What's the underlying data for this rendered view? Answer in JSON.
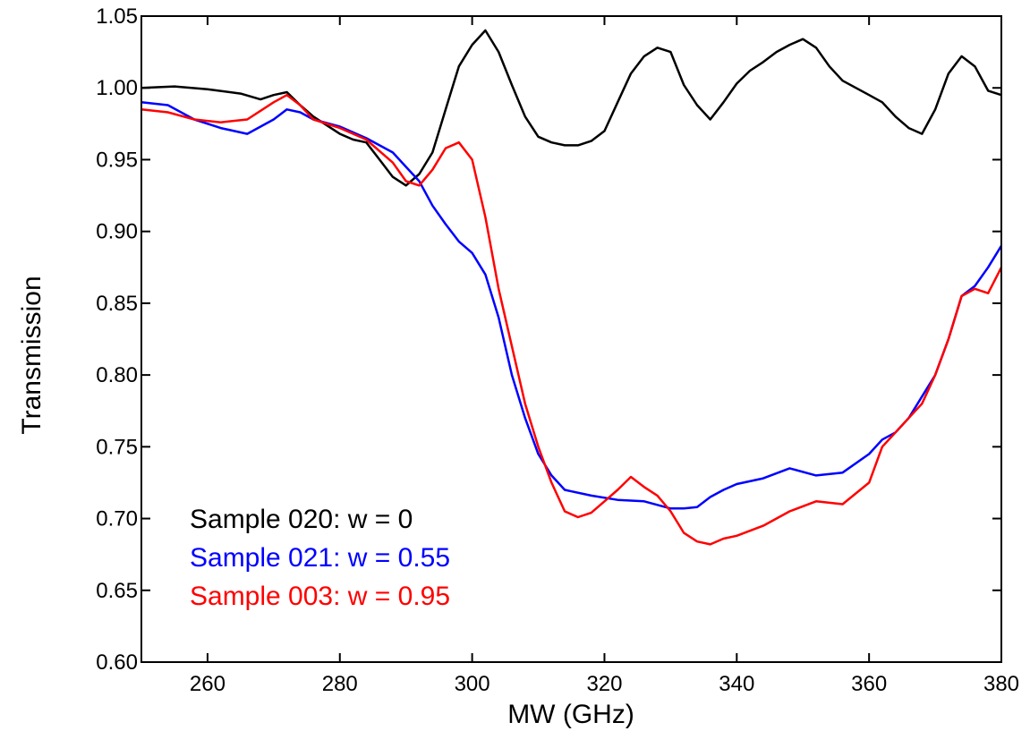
{
  "chart_data": {
    "type": "line",
    "xlabel": "MW (GHz)",
    "ylabel": "Transmission",
    "xlim": [
      250,
      380
    ],
    "ylim": [
      0.6,
      1.05
    ],
    "xticks": [
      260,
      280,
      300,
      320,
      340,
      360,
      380
    ],
    "xtick_labels": [
      "260",
      "280",
      "300",
      "320",
      "340",
      "360",
      "380"
    ],
    "yticks": [
      0.6,
      0.65,
      0.7,
      0.75,
      0.8,
      0.85,
      0.9,
      0.95,
      1.0,
      1.05
    ],
    "ytick_labels": [
      "0.60",
      "0.65",
      "0.70",
      "0.75",
      "0.80",
      "0.85",
      "0.90",
      "0.95",
      "1.00",
      "1.05"
    ],
    "grid": false,
    "legend_position": "bottom-left",
    "series": [
      {
        "name": "Sample 020: w = 0",
        "color": "#000000",
        "x": [
          250,
          255,
          260,
          265,
          268,
          270,
          272,
          274,
          276,
          278,
          280,
          282,
          284,
          286,
          288,
          290,
          292,
          294,
          296,
          298,
          300,
          302,
          304,
          306,
          308,
          310,
          312,
          314,
          316,
          318,
          320,
          322,
          324,
          326,
          328,
          330,
          332,
          334,
          336,
          338,
          340,
          342,
          344,
          346,
          348,
          350,
          352,
          354,
          356,
          358,
          360,
          362,
          364,
          366,
          368,
          370,
          372,
          374,
          376,
          378,
          380
        ],
        "y": [
          1.0,
          1.001,
          0.999,
          0.996,
          0.992,
          0.995,
          0.997,
          0.988,
          0.98,
          0.974,
          0.968,
          0.964,
          0.962,
          0.95,
          0.938,
          0.932,
          0.94,
          0.955,
          0.985,
          1.015,
          1.03,
          1.04,
          1.025,
          1.002,
          0.98,
          0.966,
          0.962,
          0.96,
          0.96,
          0.963,
          0.97,
          0.99,
          1.01,
          1.022,
          1.028,
          1.025,
          1.002,
          0.988,
          0.978,
          0.99,
          1.003,
          1.012,
          1.018,
          1.025,
          1.03,
          1.034,
          1.028,
          1.015,
          1.005,
          1.0,
          0.995,
          0.99,
          0.98,
          0.972,
          0.968,
          0.985,
          1.01,
          1.022,
          1.015,
          0.998,
          0.995
        ]
      },
      {
        "name": "Sample 021: w = 0.55",
        "color": "#0000ff",
        "x": [
          250,
          254,
          258,
          262,
          266,
          270,
          272,
          274,
          276,
          280,
          284,
          288,
          290,
          292,
          294,
          296,
          298,
          300,
          302,
          304,
          306,
          308,
          310,
          312,
          314,
          318,
          322,
          326,
          330,
          332,
          334,
          336,
          338,
          340,
          344,
          348,
          352,
          356,
          360,
          362,
          364,
          366,
          368,
          370,
          372,
          374,
          376,
          378,
          380
        ],
        "y": [
          0.99,
          0.988,
          0.978,
          0.972,
          0.968,
          0.978,
          0.985,
          0.983,
          0.978,
          0.973,
          0.965,
          0.955,
          0.945,
          0.935,
          0.918,
          0.905,
          0.893,
          0.885,
          0.87,
          0.84,
          0.8,
          0.77,
          0.745,
          0.73,
          0.72,
          0.716,
          0.713,
          0.712,
          0.707,
          0.707,
          0.708,
          0.715,
          0.72,
          0.724,
          0.728,
          0.735,
          0.73,
          0.732,
          0.745,
          0.755,
          0.76,
          0.77,
          0.785,
          0.8,
          0.825,
          0.855,
          0.862,
          0.875,
          0.89
        ]
      },
      {
        "name": "Sample 003: w = 0.95",
        "color": "#ff0000",
        "x": [
          250,
          254,
          258,
          262,
          266,
          270,
          272,
          274,
          276,
          280,
          284,
          288,
          290,
          292,
          294,
          296,
          298,
          300,
          302,
          304,
          306,
          308,
          310,
          312,
          314,
          316,
          318,
          320,
          322,
          324,
          326,
          328,
          330,
          332,
          334,
          336,
          338,
          340,
          344,
          348,
          352,
          356,
          360,
          362,
          364,
          366,
          368,
          370,
          372,
          374,
          376,
          378,
          380
        ],
        "y": [
          0.985,
          0.983,
          0.978,
          0.976,
          0.978,
          0.99,
          0.995,
          0.988,
          0.978,
          0.972,
          0.964,
          0.948,
          0.935,
          0.932,
          0.943,
          0.958,
          0.962,
          0.95,
          0.91,
          0.86,
          0.82,
          0.78,
          0.75,
          0.725,
          0.705,
          0.701,
          0.704,
          0.712,
          0.72,
          0.729,
          0.722,
          0.716,
          0.705,
          0.69,
          0.684,
          0.682,
          0.686,
          0.688,
          0.695,
          0.705,
          0.712,
          0.71,
          0.725,
          0.75,
          0.76,
          0.77,
          0.78,
          0.8,
          0.825,
          0.855,
          0.86,
          0.857,
          0.875
        ]
      }
    ]
  }
}
